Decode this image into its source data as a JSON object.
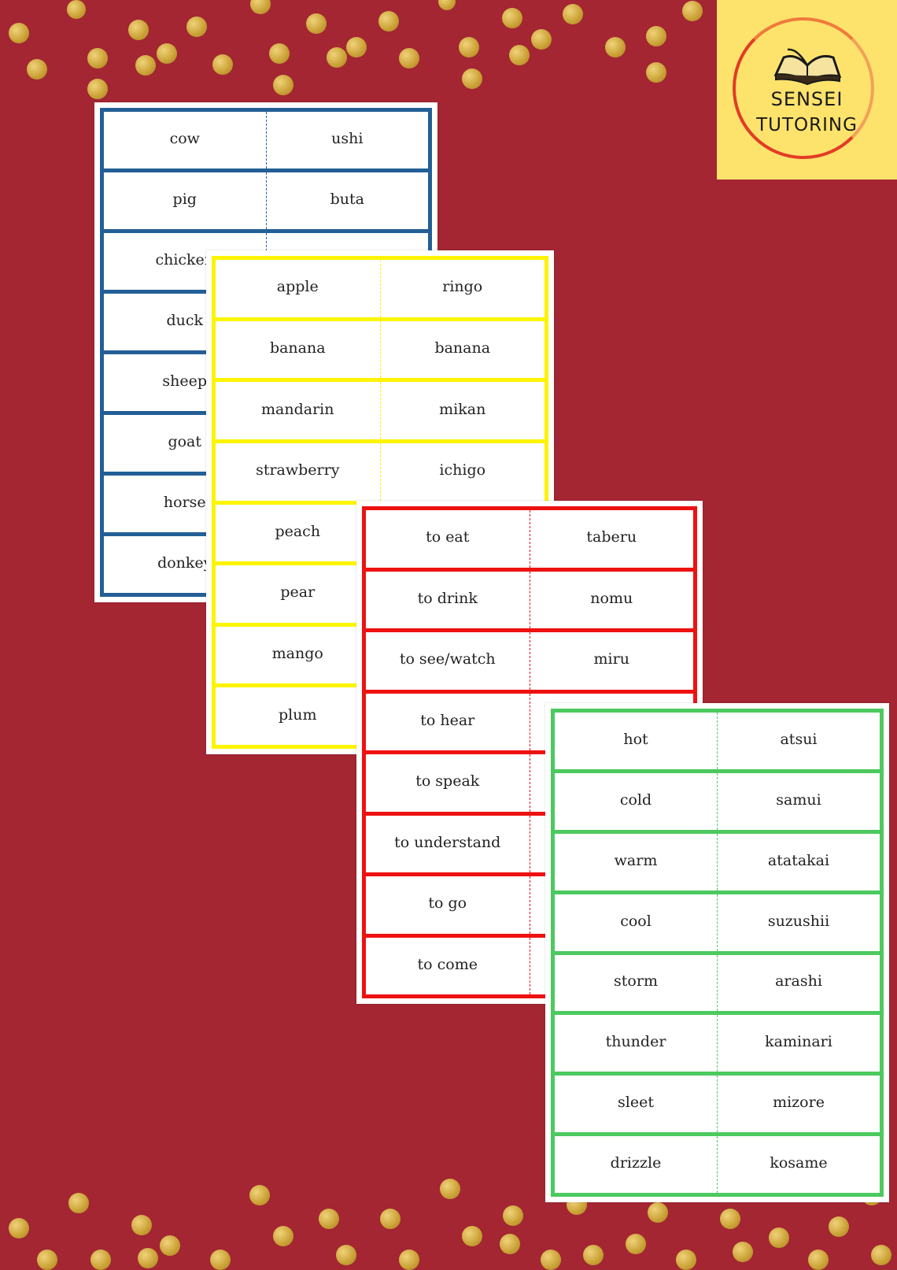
{
  "logo": {
    "line1": "SENSEI",
    "line2": "TUTORING",
    "icon": "open-book-icon",
    "background": "#fde36c",
    "ring_color": "#e33b25"
  },
  "background_color": "#a32632",
  "cards": [
    {
      "id": "card-blue",
      "color": "#235f96",
      "rows": [
        {
          "en": "cow",
          "jp": "ushi"
        },
        {
          "en": "pig",
          "jp": "buta"
        },
        {
          "en": "chicken",
          "jp": ""
        },
        {
          "en": "duck",
          "jp": ""
        },
        {
          "en": "sheep",
          "jp": ""
        },
        {
          "en": "goat",
          "jp": ""
        },
        {
          "en": "horse",
          "jp": ""
        },
        {
          "en": "donkey",
          "jp": ""
        }
      ]
    },
    {
      "id": "card-yellow",
      "color": "#fdf400",
      "rows": [
        {
          "en": "apple",
          "jp": "ringo"
        },
        {
          "en": "banana",
          "jp": "banana"
        },
        {
          "en": "mandarin",
          "jp": "mikan"
        },
        {
          "en": "strawberry",
          "jp": "ichigo"
        },
        {
          "en": "peach",
          "jp": ""
        },
        {
          "en": "pear",
          "jp": ""
        },
        {
          "en": "mango",
          "jp": ""
        },
        {
          "en": "plum",
          "jp": ""
        }
      ]
    },
    {
      "id": "card-red",
      "color": "#ee1111",
      "rows": [
        {
          "en": "to eat",
          "jp": "taberu"
        },
        {
          "en": "to drink",
          "jp": "nomu"
        },
        {
          "en": "to see/watch",
          "jp": "miru"
        },
        {
          "en": "to hear",
          "jp": ""
        },
        {
          "en": "to speak",
          "jp": ""
        },
        {
          "en": "to understand",
          "jp": ""
        },
        {
          "en": "to go",
          "jp": ""
        },
        {
          "en": "to come",
          "jp": ""
        }
      ]
    },
    {
      "id": "card-green",
      "color": "#4cc95f",
      "rows": [
        {
          "en": "hot",
          "jp": "atsui"
        },
        {
          "en": "cold",
          "jp": "samui"
        },
        {
          "en": "warm",
          "jp": "atatakai"
        },
        {
          "en": "cool",
          "jp": "suzushii"
        },
        {
          "en": "storm",
          "jp": "arashi"
        },
        {
          "en": "thunder",
          "jp": "kaminari"
        },
        {
          "en": "sleet",
          "jp": "mizore"
        },
        {
          "en": "drizzle",
          "jp": "kosame"
        }
      ]
    }
  ]
}
